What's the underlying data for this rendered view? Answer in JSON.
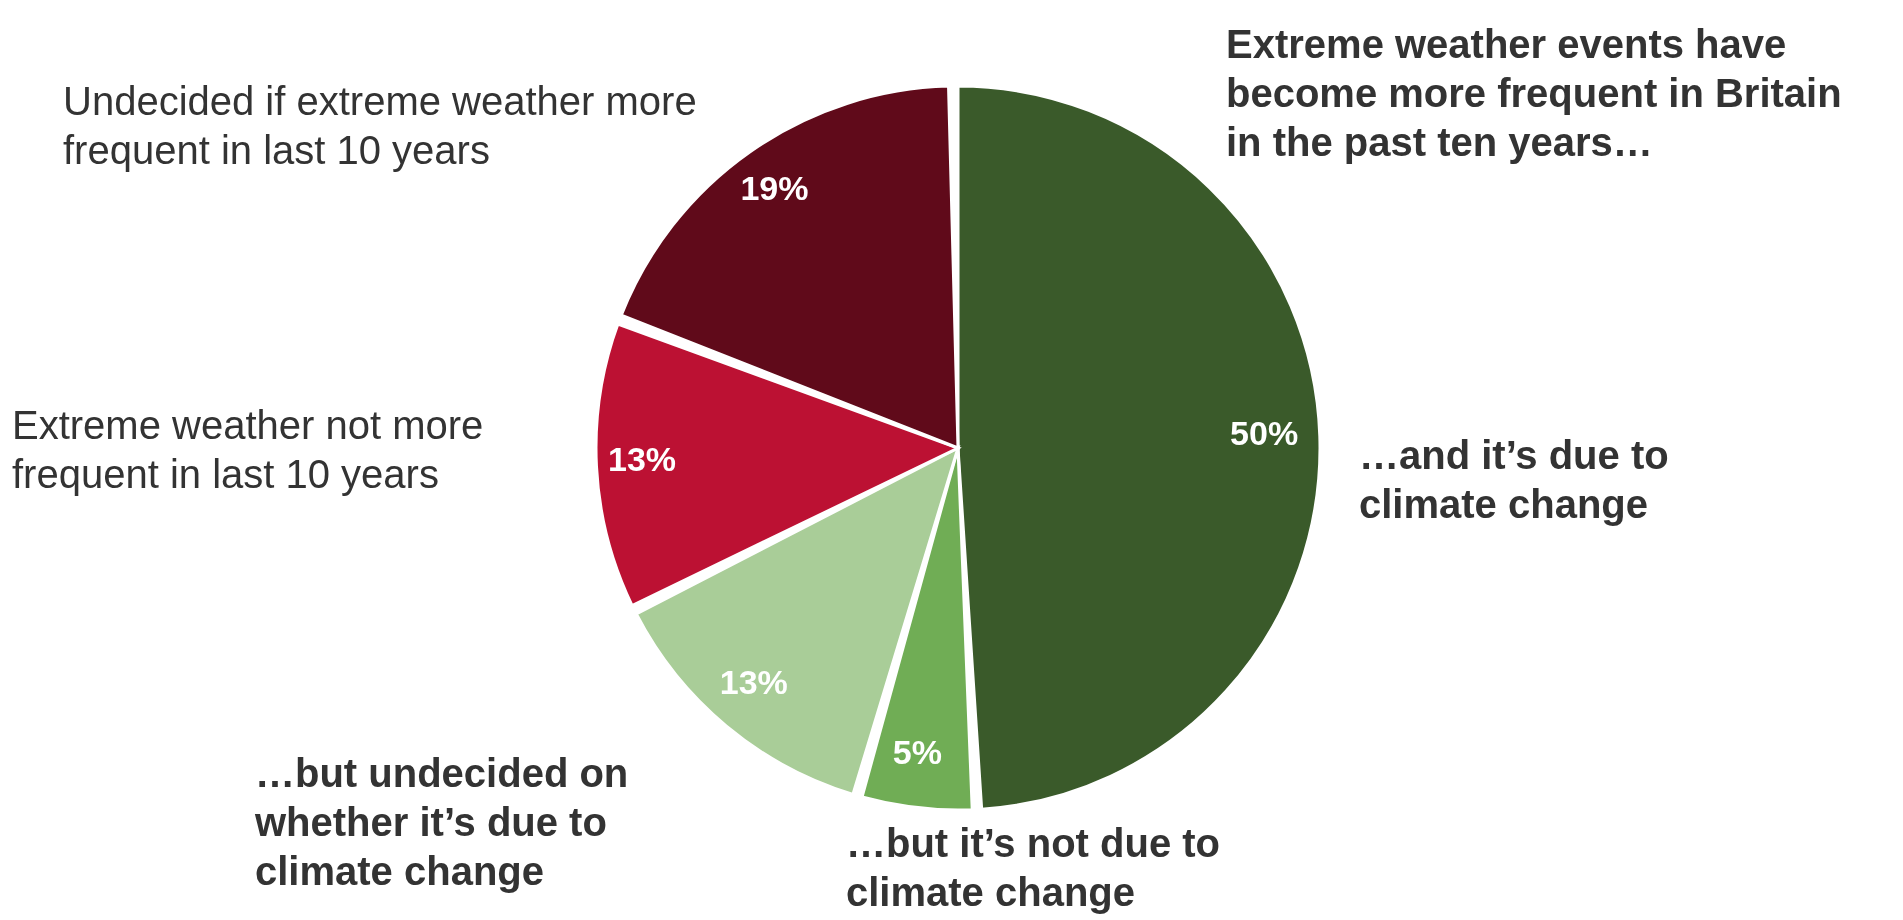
{
  "chart_data": {
    "type": "pie",
    "title": "Extreme weather events have become more frequent in Britain in the past ten years…",
    "categories": [
      "…and it’s due to climate change",
      "…but it’s not due to climate change",
      "…but undecided on whether it’s due to climate change",
      "Extreme weather not more frequent in last 10 years",
      "Undecided if extreme weather more frequent in last 10 years"
    ],
    "values": [
      50,
      5,
      13,
      13,
      19
    ],
    "colors": [
      "#3a5a2a",
      "#70ad55",
      "#a9cd98",
      "#bc1133",
      "#600a1a"
    ],
    "value_labels": [
      "50%",
      "5%",
      "13%",
      "13%",
      "19%"
    ]
  }
}
